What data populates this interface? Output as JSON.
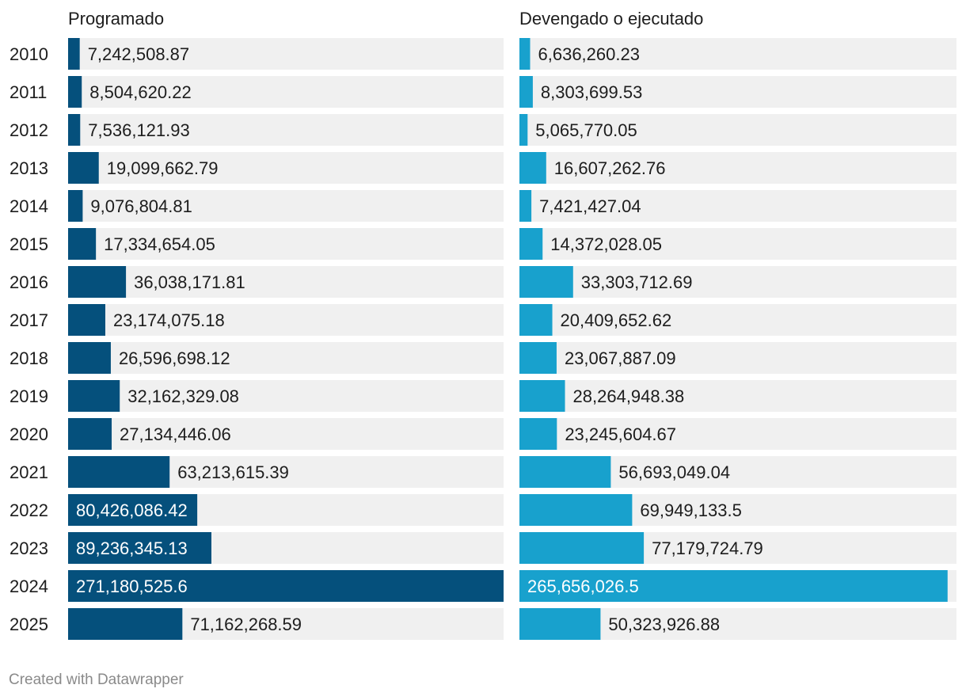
{
  "chart_data": {
    "type": "bar",
    "orientation": "horizontal",
    "layout": "split-bars",
    "categories": [
      "2010",
      "2011",
      "2012",
      "2013",
      "2014",
      "2015",
      "2016",
      "2017",
      "2018",
      "2019",
      "2020",
      "2021",
      "2022",
      "2023",
      "2024",
      "2025"
    ],
    "series": [
      {
        "name": "Programado",
        "color": "#05507c",
        "values": [
          7242508.87,
          8504620.22,
          7536121.93,
          19099662.79,
          9076804.81,
          17334654.05,
          36038171.81,
          23174075.18,
          26596698.12,
          32162329.08,
          27134446.06,
          63213615.39,
          80426086.42,
          89236345.13,
          271180525.6,
          71162268.59
        ],
        "labels": [
          "7,242,508.87",
          "8,504,620.22",
          "7,536,121.93",
          "19,099,662.79",
          "9,076,804.81",
          "17,334,654.05",
          "36,038,171.81",
          "23,174,075.18",
          "26,596,698.12",
          "32,162,329.08",
          "27,134,446.06",
          "63,213,615.39",
          "80,426,086.42",
          "89,236,345.13",
          "271,180,525.6",
          "71,162,268.59"
        ]
      },
      {
        "name": "Devengado o ejecutado",
        "color": "#18a1cd",
        "values": [
          6636260.23,
          8303699.53,
          5065770.05,
          16607262.76,
          7421427.04,
          14372028.05,
          33303712.69,
          20409652.62,
          23067887.09,
          28264948.38,
          23245604.67,
          56693049.04,
          69949133.5,
          77179724.79,
          265656026.5,
          50323926.88
        ],
        "labels": [
          "6,636,260.23",
          "8,303,699.53",
          "5,065,770.05",
          "16,607,262.76",
          "7,421,427.04",
          "14,372,028.05",
          "33,303,712.69",
          "20,409,652.62",
          "23,067,887.09",
          "28,264,948.38",
          "23,245,604.67",
          "56,693,049.04",
          "69,949,133.5",
          "77,179,724.79",
          "265,656,026.5",
          "50,323,926.88"
        ]
      }
    ],
    "xlim": [
      0,
      271180525.6
    ],
    "track_color": "#f0f0f0"
  },
  "footer": {
    "credit": "Created with Datawrapper"
  }
}
